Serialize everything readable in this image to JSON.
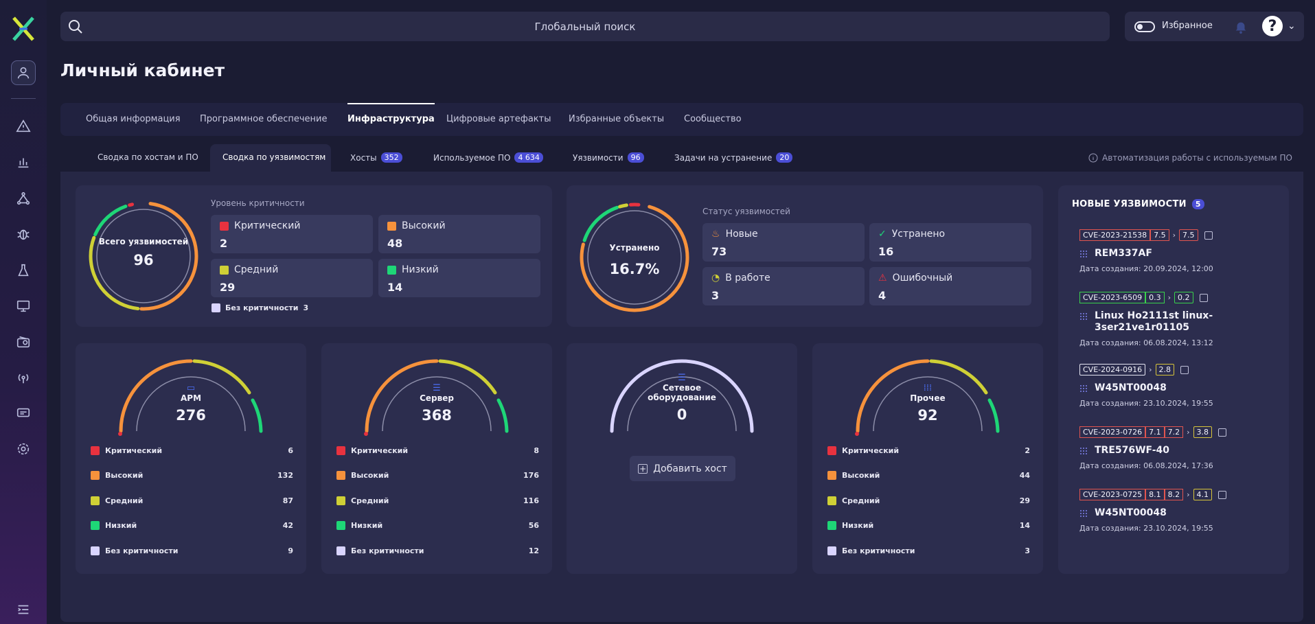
{
  "search": {
    "placeholder": "Глобальный поиск"
  },
  "topbar": {
    "favorites_label": "Избранное",
    "help_symbol": "?",
    "chevron": "⌄"
  },
  "page_title": "Личный кабинет",
  "main_tabs": [
    {
      "label": "Общая информация",
      "active": false
    },
    {
      "label": "Программное обеспечение",
      "active": false
    },
    {
      "label": "Инфраструктура",
      "active": true
    },
    {
      "label": "Цифровые артефакты",
      "active": false
    },
    {
      "label": "Избранные объекты",
      "active": false
    },
    {
      "label": "Сообщество",
      "active": false
    }
  ],
  "sub_tabs": [
    {
      "label": "Сводка по хостам и ПО",
      "badge": ""
    },
    {
      "label": "Сводка по уязвимостям",
      "badge": "",
      "active": true
    },
    {
      "label": "Хосты",
      "badge": "352"
    },
    {
      "label": "Используемое ПО",
      "badge": "4 634"
    },
    {
      "label": "Уязвимости",
      "badge": "96"
    },
    {
      "label": "Задачи на устранение",
      "badge": "20"
    }
  ],
  "automation_link": "Автоматизация работы с используемым ПО",
  "criticality": {
    "ring_title": "Всего уязвимостей",
    "total": "96",
    "heading": "Уровень критичности",
    "items": [
      {
        "label": "Критический",
        "value": "2",
        "color": "#e8323f"
      },
      {
        "label": "Высокий",
        "value": "48",
        "color": "#f6923c"
      },
      {
        "label": "Средний",
        "value": "29",
        "color": "#cfd036"
      },
      {
        "label": "Низкий",
        "value": "14",
        "color": "#1ed677"
      }
    ],
    "none_label": "Без критичности",
    "none_value": "3",
    "none_color": "#d9d4ff"
  },
  "status": {
    "ring_title": "Устранено",
    "ring_value": "16.7%",
    "heading": "Статус уязвимостей",
    "items": [
      {
        "label": "Новые",
        "value": "73",
        "icon": "fire-icon"
      },
      {
        "label": "Устранено",
        "value": "16",
        "icon": "check-circle-icon"
      },
      {
        "label": "В работе",
        "value": "3",
        "icon": "progress-icon"
      },
      {
        "label": "Ошибочный",
        "value": "4",
        "icon": "warning-icon"
      }
    ]
  },
  "host_cards": [
    {
      "title": "АРМ",
      "total": "276",
      "icon": "workstation-icon",
      "rows": [
        {
          "label": "Критический",
          "value": "6"
        },
        {
          "label": "Высокий",
          "value": "132"
        },
        {
          "label": "Средний",
          "value": "87"
        },
        {
          "label": "Низкий",
          "value": "42"
        },
        {
          "label": "Без критичности",
          "value": "9"
        }
      ]
    },
    {
      "title": "Сервер",
      "total": "368",
      "icon": "server-icon",
      "rows": [
        {
          "label": "Критический",
          "value": "8"
        },
        {
          "label": "Высокий",
          "value": "176"
        },
        {
          "label": "Средний",
          "value": "116"
        },
        {
          "label": "Низкий",
          "value": "56"
        },
        {
          "label": "Без критичности",
          "value": "12"
        }
      ]
    },
    {
      "title": "Сетевое оборудование",
      "total": "0",
      "icon": "network-icon",
      "add_label": "Добавить хост"
    },
    {
      "title": "Прочее",
      "total": "92",
      "icon": "grid-dots-icon",
      "rows": [
        {
          "label": "Критический",
          "value": "2"
        },
        {
          "label": "Высокий",
          "value": "44"
        },
        {
          "label": "Средний",
          "value": "29"
        },
        {
          "label": "Низкий",
          "value": "14"
        },
        {
          "label": "Без критичности",
          "value": "3"
        }
      ]
    }
  ],
  "new_vulns": {
    "title": "НОВЫЕ УЯЗВИМОСТИ",
    "count": "5",
    "date_prefix": "Дата создания:",
    "items": [
      {
        "cve": "CVE-2023-21538",
        "scores": [
          "7.5"
        ],
        "new_score": "7.5",
        "host": "REM337AF",
        "date": "20.09.2024, 12:00"
      },
      {
        "cve": "CVE-2023-6509",
        "scores": [
          "0.3"
        ],
        "new_score": "0.2",
        "host": "Linux Ho2111st linux-3ser21ve1r01105",
        "date": "06.08.2024, 13:12"
      },
      {
        "cve": "CVE-2024-0916",
        "scores": [],
        "new_score": "2.8",
        "host": "W45NT00048",
        "date": "23.10.2024, 19:55"
      },
      {
        "cve": "CVE-2023-0726",
        "scores": [
          "7.1",
          "7.2"
        ],
        "new_score": "3.8",
        "host": "TRE576WF-40",
        "date": "06.08.2024, 17:36"
      },
      {
        "cve": "CVE-2023-0725",
        "scores": [
          "8.1",
          "8.2"
        ],
        "new_score": "4.1",
        "host": "W45NT00048",
        "date": "23.10.2024, 19:55"
      }
    ]
  },
  "colors": {
    "critical": "#e8323f",
    "high": "#f6923c",
    "medium": "#cfd036",
    "low": "#1ed677",
    "none": "#d9d4ff"
  }
}
